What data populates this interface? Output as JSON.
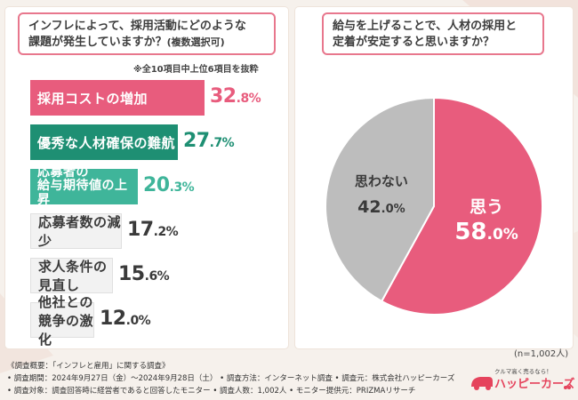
{
  "left": {
    "question_line1": "インフレによって、採用活動にどのような",
    "question_line2": "課題が発生していますか？",
    "question_suffix": "(複数選択可)",
    "note": "※全10項目中上位6項目を抜粋"
  },
  "right": {
    "question_line1": "給与を上げることで、人材の採用と",
    "question_line2": "定着が安定すると思いますか？",
    "sample_size": "(n=1,002人)"
  },
  "chart_data": [
    {
      "type": "bar",
      "orientation": "horizontal",
      "title": "インフレによって、採用活動にどのような課題が発生していますか？(複数選択可)",
      "categories": [
        "採用コストの増加",
        "優秀な人材確保の難航",
        "応募者の給与期待値の上昇",
        "応募者数の減少",
        "求人条件の見直し",
        "他社との競争の激化"
      ],
      "category_lines": [
        [
          "採用コストの増加"
        ],
        [
          "優秀な人材確保の難航"
        ],
        [
          "応募者の",
          "給与期待値の上昇"
        ],
        [
          "応募者数の減少"
        ],
        [
          "求人条件の見直し"
        ],
        [
          "他社との競争の激化"
        ]
      ],
      "values": [
        32.8,
        27.7,
        20.3,
        17.2,
        15.6,
        12.0
      ],
      "value_int": [
        "32",
        "27",
        "20",
        "17",
        "15",
        "12"
      ],
      "value_dec": [
        ".8%",
        ".7%",
        ".3%",
        ".2%",
        ".6%",
        ".0%"
      ],
      "bar_colors": [
        "#e85c7d",
        "#1e8f73",
        "#3fb59a",
        "#f2f2f2",
        "#f2f2f2",
        "#f2f2f2"
      ],
      "pct_colors": [
        "#e85c7d",
        "#1e8f73",
        "#3fb59a",
        "#3a3a3a",
        "#3a3a3a",
        "#3a3a3a"
      ],
      "xlim": [
        0,
        32.8
      ]
    },
    {
      "type": "pie",
      "title": "給与を上げることで、人材の採用と定着が安定すると思いますか？",
      "labels": [
        "思う",
        "思わない"
      ],
      "values": [
        58.0,
        42.0
      ],
      "value_int": [
        "58",
        "42"
      ],
      "value_dec": [
        ".0%",
        ".0%"
      ],
      "colors": [
        "#e85c7d",
        "#bdbdbd"
      ],
      "label_colors": [
        "#ffffff",
        "#3a3a3a"
      ]
    }
  ],
  "footer": {
    "line1": "《調査概要：「インフレと雇用」に関する調査》",
    "line2": "• 調査期間：2024年9月27日（金）～2024年9月28日（土）  • 調査方法：インターネット調査    • 調査元：株式会社ハッピーカーズ",
    "line3": "• 調査対象：調査回答時に経営者であると回答したモニター        • 調査人数：1,002人    • モニター提供元：PRIZMAリサーチ"
  },
  "logo": {
    "tagline": "クルマ高く売るなら！",
    "name": "ハッピーカーズ"
  }
}
